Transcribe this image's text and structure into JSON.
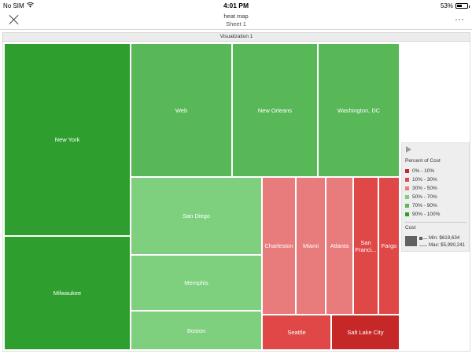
{
  "status_bar": {
    "carrier": "No SIM",
    "time": "4:01 PM",
    "battery": "53%",
    "battery_level": 0.53
  },
  "nav": {
    "title": "heat map",
    "subtitle": "Sheet 1",
    "more": "···"
  },
  "viz": {
    "header": "Visualization 1"
  },
  "colors": {
    "0-10": "#c62828",
    "10-30": "#e04848",
    "30-50": "#e87c7c",
    "50-70": "#7ed07e",
    "70-90": "#58b858",
    "90-100": "#2e9e2e"
  },
  "treemap": {
    "tiles": [
      {
        "label": "New York",
        "bucket": "90-100"
      },
      {
        "label": "Milwaukee",
        "bucket": "90-100"
      },
      {
        "label": "Web",
        "bucket": "70-90"
      },
      {
        "label": "New Orleans",
        "bucket": "70-90"
      },
      {
        "label": "Washington, DC",
        "bucket": "70-90"
      },
      {
        "label": "San Diego",
        "bucket": "50-70"
      },
      {
        "label": "Memphis",
        "bucket": "50-70"
      },
      {
        "label": "Boston",
        "bucket": "50-70"
      },
      {
        "label": "Charleston",
        "bucket": "30-50"
      },
      {
        "label": "Miami",
        "bucket": "30-50"
      },
      {
        "label": "Atlanta",
        "bucket": "30-50"
      },
      {
        "label": "San Franci...",
        "bucket": "10-30"
      },
      {
        "label": "Fargo",
        "bucket": "10-30"
      },
      {
        "label": "Seattle",
        "bucket": "10-30"
      },
      {
        "label": "Salt Lake City",
        "bucket": "0-10"
      }
    ]
  },
  "legend": {
    "title": "Percent of Cost",
    "items": [
      {
        "label": "0% - 10%",
        "bucket": "0-10"
      },
      {
        "label": "10% - 30%",
        "bucket": "10-30"
      },
      {
        "label": "30% - 50%",
        "bucket": "30-50"
      },
      {
        "label": "50% - 70%",
        "bucket": "50-70"
      },
      {
        "label": "70% - 90%",
        "bucket": "70-90"
      },
      {
        "label": "90% - 100%",
        "bucket": "90-100"
      }
    ],
    "cost_title": "Cost",
    "cost_min": "Min: $619,634",
    "cost_max": "Max: $5,990,241"
  }
}
